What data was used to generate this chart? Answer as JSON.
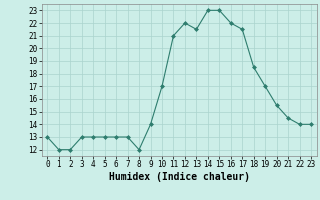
{
  "x": [
    0,
    1,
    2,
    3,
    4,
    5,
    6,
    7,
    8,
    9,
    10,
    11,
    12,
    13,
    14,
    15,
    16,
    17,
    18,
    19,
    20,
    21,
    22,
    23
  ],
  "y": [
    13,
    12,
    12,
    13,
    13,
    13,
    13,
    13,
    12,
    14,
    17,
    21,
    22,
    21.5,
    23,
    23,
    22,
    21.5,
    18.5,
    17,
    15.5,
    14.5,
    14,
    14
  ],
  "line_color": "#2e7d6e",
  "marker": "D",
  "marker_size": 2,
  "bg_color": "#cceee8",
  "grid_color": "#aad4ce",
  "xlabel": "Humidex (Indice chaleur)",
  "xlim": [
    -0.5,
    23.5
  ],
  "ylim": [
    11.5,
    23.5
  ],
  "yticks": [
    12,
    13,
    14,
    15,
    16,
    17,
    18,
    19,
    20,
    21,
    22,
    23
  ],
  "xticks": [
    0,
    1,
    2,
    3,
    4,
    5,
    6,
    7,
    8,
    9,
    10,
    11,
    12,
    13,
    14,
    15,
    16,
    17,
    18,
    19,
    20,
    21,
    22,
    23
  ],
  "tick_fontsize": 5.5,
  "label_fontsize": 7.0
}
